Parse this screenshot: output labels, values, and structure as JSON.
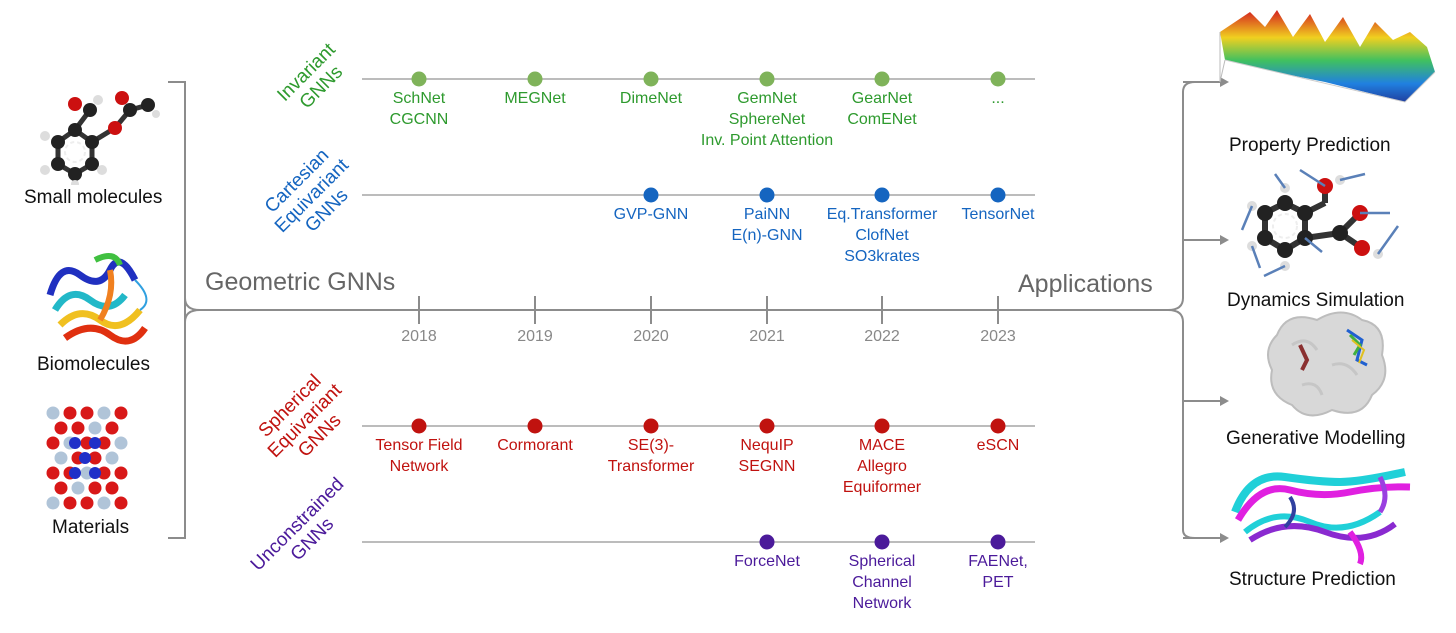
{
  "colors": {
    "invariant": "#2e9a2e",
    "invariant_dot": "#7fb35a",
    "cartesian": "#1565c0",
    "spherical": "#c0120f",
    "unconstrained": "#4b1a9a",
    "axis": "#a6a6a6",
    "bracket": "#8c8c8c"
  },
  "inputs": [
    {
      "label": "Small molecules",
      "icon": "molecule-icon"
    },
    {
      "label": "Biomolecules",
      "icon": "protein-ribbon-icon"
    },
    {
      "label": "Materials",
      "icon": "crystal-lattice-icon"
    }
  ],
  "left_title": "Geometric GNNs",
  "right_title": "Applications",
  "years": [
    "2018",
    "2019",
    "2020",
    "2021",
    "2022",
    "2023"
  ],
  "categories": [
    {
      "key": "invariant",
      "label": "Invariant\nGNNs",
      "entries": [
        {
          "year": "2018",
          "text": "SchNet\nCGCNN"
        },
        {
          "year": "2019",
          "text": "MEGNet"
        },
        {
          "year": "2020",
          "text": "DimeNet"
        },
        {
          "year": "2021",
          "text": "GemNet\nSphereNet\nInv. Point Attention"
        },
        {
          "year": "2022",
          "text": "GearNet\nComENet"
        },
        {
          "year": "2023",
          "text": "..."
        }
      ]
    },
    {
      "key": "cartesian",
      "label": "Cartesian\nEquivariant\nGNNs",
      "entries": [
        {
          "year": "2020",
          "text": "GVP-GNN"
        },
        {
          "year": "2021",
          "text": "PaiNN\nE(n)-GNN"
        },
        {
          "year": "2022",
          "text": "Eq.Transformer\nClofNet\nSO3krates"
        },
        {
          "year": "2023",
          "text": "TensorNet"
        }
      ]
    },
    {
      "key": "spherical",
      "label": "Spherical\nEquivariant\nGNNs",
      "entries": [
        {
          "year": "2018",
          "text": "Tensor Field\nNetwork"
        },
        {
          "year": "2019",
          "text": "Cormorant"
        },
        {
          "year": "2020",
          "text": "SE(3)-\nTransformer"
        },
        {
          "year": "2021",
          "text": "NequIP\nSEGNN"
        },
        {
          "year": "2022",
          "text": "MACE\nAllegro\nEquiformer"
        },
        {
          "year": "2023",
          "text": "eSCN"
        }
      ]
    },
    {
      "key": "unconstrained",
      "label": "Unconstrained\nGNNs",
      "entries": [
        {
          "year": "2021",
          "text": "ForceNet"
        },
        {
          "year": "2022",
          "text": "Spherical\nChannel\nNetwork"
        },
        {
          "year": "2023",
          "text": "FAENet,\nPET"
        }
      ]
    }
  ],
  "applications": [
    {
      "label": "Property Prediction",
      "icon": "energy-landscape-icon"
    },
    {
      "label": "Dynamics Simulation",
      "icon": "molecule-forces-icon"
    },
    {
      "label": "Generative Modelling",
      "icon": "protein-surface-icon"
    },
    {
      "label": "Structure Prediction",
      "icon": "protein-overlay-icon"
    }
  ]
}
